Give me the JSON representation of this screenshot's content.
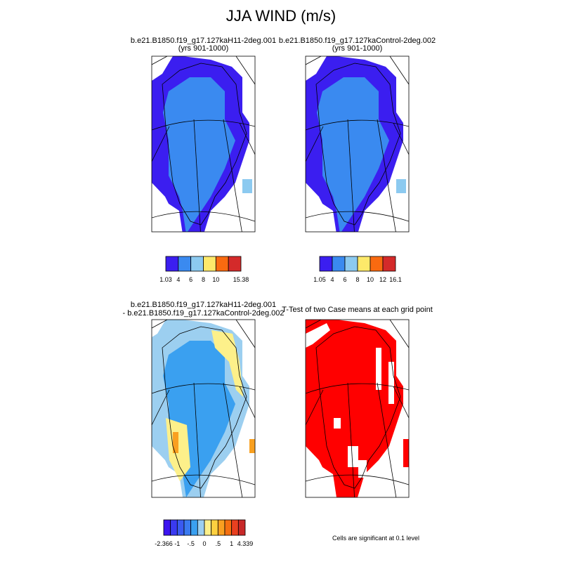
{
  "title": "JJA WIND (m/s)",
  "panels": [
    {
      "title": [
        "b.e21.B1850.f19_g17.127kaH11-2deg.001",
        "(yrs 901-1000)"
      ],
      "style": "wind"
    },
    {
      "title": [
        "b.e21.B1850.f19_g17.127kaControl-2deg.002",
        "(yrs 901-1000)"
      ],
      "style": "wind"
    },
    {
      "title": [
        "b.e21.B1850.f19_g17.127kaH11-2deg.001",
        "- b.e21.B1850.f19_g17.127kaControl-2deg.002"
      ],
      "style": "diff"
    },
    {
      "title": [
        "T-Test of two Case means at each grid point"
      ],
      "style": "ttest"
    }
  ],
  "colorbars": [
    {
      "colors": [
        "#3b1ef0",
        "#3a8af0",
        "#8ccaf0",
        "#fde96a",
        "#f96a10",
        "#d42a2a"
      ],
      "labels": [
        "1.03",
        "4",
        "6",
        "8",
        "10",
        null,
        "15.38"
      ]
    },
    {
      "colors": [
        "#3b1ef0",
        "#3a8af0",
        "#8ccaf0",
        "#fde96a",
        "#f96a10",
        "#d42a2a"
      ],
      "labels": [
        "1.05",
        "4",
        "6",
        "8",
        "10",
        "12",
        "16.1"
      ]
    },
    {
      "colors": [
        "#3c14f0",
        "#3a3af0",
        "#3a5af0",
        "#3a7af0",
        "#3aa0f0",
        "#9ccff0",
        "#fdf08a",
        "#fdd040",
        "#f9a020",
        "#f57010",
        "#e84020",
        "#c82828"
      ],
      "labels": [
        "-2.366",
        null,
        "-1",
        null,
        "-.5",
        null,
        "0",
        null,
        ".5",
        null,
        "1",
        null,
        "4.339"
      ]
    }
  ],
  "footnote": "Cells are significant at 0.1 level"
}
